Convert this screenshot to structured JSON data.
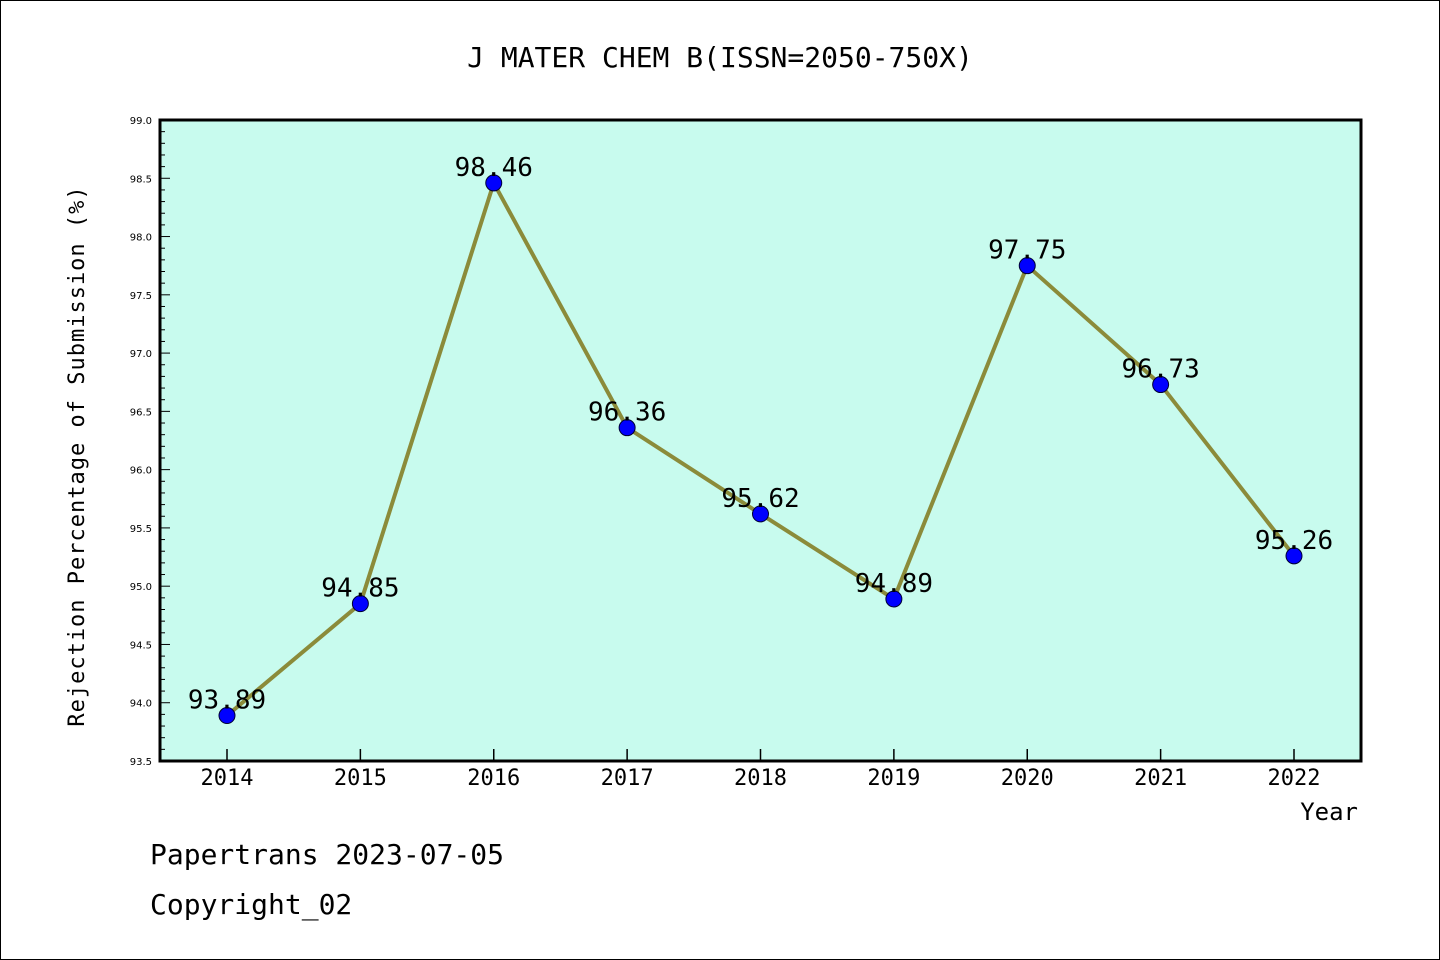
{
  "chart_data": {
    "type": "line",
    "title": "J MATER CHEM B(ISSN=2050-750X)",
    "xlabel": "Year",
    "ylabel": "Rejection Percentage of Submission (%)",
    "categories": [
      "2014",
      "2015",
      "2016",
      "2017",
      "2018",
      "2019",
      "2020",
      "2021",
      "2022"
    ],
    "values": [
      93.89,
      94.85,
      98.46,
      96.36,
      95.62,
      94.89,
      97.75,
      96.73,
      95.26
    ],
    "data_labels": [
      "93.89",
      "94.85",
      "98.46",
      "96.36",
      "95.62",
      "94.89",
      "97.75",
      "96.73",
      "95.26"
    ],
    "ylim": [
      93.5,
      99.0
    ],
    "yticks": [
      "93.5",
      "94.0",
      "94.5",
      "95.0",
      "95.5",
      "96.0",
      "96.5",
      "97.0",
      "97.5",
      "98.0",
      "98.5",
      "99.0"
    ],
    "grid": false,
    "colors": {
      "plot_background": "#c8fbee",
      "line": "#8b8b3a",
      "marker": "#0000ff"
    }
  },
  "footer": {
    "line1": "Papertrans 2023-07-05",
    "line2": "Copyright_02"
  }
}
